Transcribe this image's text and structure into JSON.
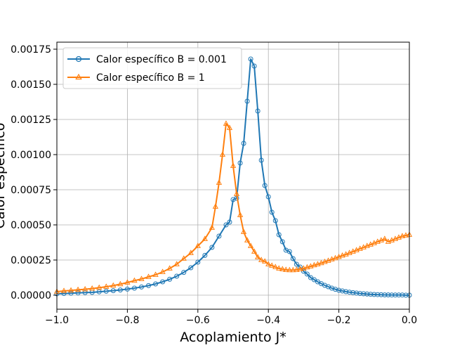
{
  "chart_data": {
    "type": "line",
    "xlabel": "Acoplamiento J*",
    "ylabel": "Calor específico",
    "xlim": [
      -1.0,
      0.0
    ],
    "ylim": [
      -0.0001,
      0.0018
    ],
    "grid": true,
    "legend_position": "upper-left",
    "x_ticks": [
      -1.0,
      -0.8,
      -0.6,
      -0.4,
      -0.2,
      0.0
    ],
    "x_tick_labels": [
      "−1.0",
      "−0.8",
      "−0.6",
      "−0.4",
      "−0.2",
      "0.0"
    ],
    "y_ticks": [
      0,
      0.00025,
      0.0005,
      0.00075,
      0.001,
      0.00125,
      0.0015,
      0.00175
    ],
    "y_tick_labels": [
      "0.00000",
      "0.00025",
      "0.00050",
      "0.00075",
      "0.00100",
      "0.00125",
      "0.00150",
      "0.00175"
    ],
    "series": [
      {
        "name": "Calor específico  B = 0.001",
        "color": "#1f77b4",
        "marker": "circle",
        "points": [
          [
            -1.0,
            1e-05
          ],
          [
            -0.98,
            1.2e-05
          ],
          [
            -0.96,
            1.4e-05
          ],
          [
            -0.94,
            1.6e-05
          ],
          [
            -0.92,
            1.8e-05
          ],
          [
            -0.9,
            2e-05
          ],
          [
            -0.88,
            2.4e-05
          ],
          [
            -0.86,
            2.8e-05
          ],
          [
            -0.84,
            3.2e-05
          ],
          [
            -0.82,
            3.7e-05
          ],
          [
            -0.8,
            4.3e-05
          ],
          [
            -0.78,
            5e-05
          ],
          [
            -0.76,
            5.8e-05
          ],
          [
            -0.74,
            6.8e-05
          ],
          [
            -0.72,
            8e-05
          ],
          [
            -0.7,
            9.5e-05
          ],
          [
            -0.68,
            0.000113
          ],
          [
            -0.66,
            0.000135
          ],
          [
            -0.64,
            0.000162
          ],
          [
            -0.62,
            0.000195
          ],
          [
            -0.6,
            0.000235
          ],
          [
            -0.58,
            0.000283
          ],
          [
            -0.56,
            0.00034
          ],
          [
            -0.54,
            0.00042
          ],
          [
            -0.52,
            0.0005
          ],
          [
            -0.51,
            0.00052
          ],
          [
            -0.5,
            0.00068
          ],
          [
            -0.49,
            0.00069
          ],
          [
            -0.48,
            0.00094
          ],
          [
            -0.47,
            0.00108
          ],
          [
            -0.46,
            0.00138
          ],
          [
            -0.45,
            0.00168
          ],
          [
            -0.44,
            0.00163
          ],
          [
            -0.43,
            0.00131
          ],
          [
            -0.42,
            0.00096
          ],
          [
            -0.41,
            0.00078
          ],
          [
            -0.4,
            0.0007
          ],
          [
            -0.39,
            0.00059
          ],
          [
            -0.38,
            0.00053
          ],
          [
            -0.37,
            0.00043
          ],
          [
            -0.36,
            0.00038
          ],
          [
            -0.35,
            0.00032
          ],
          [
            -0.34,
            0.00031
          ],
          [
            -0.33,
            0.00026
          ],
          [
            -0.32,
            0.00022
          ],
          [
            -0.31,
            0.0002
          ],
          [
            -0.3,
            0.00017
          ],
          [
            -0.29,
            0.00015
          ],
          [
            -0.28,
            0.000125
          ],
          [
            -0.27,
            0.00011
          ],
          [
            -0.26,
            9.5e-05
          ],
          [
            -0.25,
            8.2e-05
          ],
          [
            -0.24,
            7e-05
          ],
          [
            -0.23,
            6e-05
          ],
          [
            -0.22,
            5e-05
          ],
          [
            -0.21,
            4.2e-05
          ],
          [
            -0.2,
            3.5e-05
          ],
          [
            -0.19,
            3e-05
          ],
          [
            -0.18,
            2.5e-05
          ],
          [
            -0.17,
            2.1e-05
          ],
          [
            -0.16,
            1.8e-05
          ],
          [
            -0.15,
            1.5e-05
          ],
          [
            -0.14,
            1.2e-05
          ],
          [
            -0.13,
            1e-05
          ],
          [
            -0.12,
            8e-06
          ],
          [
            -0.11,
            6e-06
          ],
          [
            -0.1,
            5e-06
          ],
          [
            -0.09,
            4e-06
          ],
          [
            -0.08,
            3e-06
          ],
          [
            -0.07,
            2e-06
          ],
          [
            -0.06,
            2e-06
          ],
          [
            -0.05,
            1e-06
          ],
          [
            -0.04,
            1e-06
          ],
          [
            -0.03,
            1e-06
          ],
          [
            -0.02,
            1e-06
          ],
          [
            -0.01,
            0.0
          ],
          [
            0.0,
            0.0
          ]
        ]
      },
      {
        "name": "Calor específico B = 1",
        "color": "#ff7f0e",
        "marker": "triangle",
        "points": [
          [
            -1.0,
            2.5e-05
          ],
          [
            -0.98,
            3e-05
          ],
          [
            -0.96,
            3.4e-05
          ],
          [
            -0.94,
            3.8e-05
          ],
          [
            -0.92,
            4.2e-05
          ],
          [
            -0.9,
            4.7e-05
          ],
          [
            -0.88,
            5.3e-05
          ],
          [
            -0.86,
            6e-05
          ],
          [
            -0.84,
            6.8e-05
          ],
          [
            -0.82,
            7.8e-05
          ],
          [
            -0.8,
            9e-05
          ],
          [
            -0.78,
            0.000103
          ],
          [
            -0.76,
            0.000115
          ],
          [
            -0.74,
            0.00013
          ],
          [
            -0.72,
            0.000145
          ],
          [
            -0.7,
            0.000165
          ],
          [
            -0.68,
            0.00019
          ],
          [
            -0.66,
            0.00022
          ],
          [
            -0.64,
            0.00026
          ],
          [
            -0.62,
            0.0003
          ],
          [
            -0.6,
            0.00035
          ],
          [
            -0.58,
            0.0004
          ],
          [
            -0.56,
            0.00048
          ],
          [
            -0.55,
            0.00063
          ],
          [
            -0.54,
            0.0008
          ],
          [
            -0.53,
            0.001
          ],
          [
            -0.52,
            0.00122
          ],
          [
            -0.51,
            0.00119
          ],
          [
            -0.5,
            0.00092
          ],
          [
            -0.49,
            0.00072
          ],
          [
            -0.48,
            0.00057
          ],
          [
            -0.47,
            0.00045
          ],
          [
            -0.46,
            0.00039
          ],
          [
            -0.45,
            0.00035
          ],
          [
            -0.44,
            0.00031
          ],
          [
            -0.43,
            0.00027
          ],
          [
            -0.42,
            0.00025
          ],
          [
            -0.41,
            0.00024
          ],
          [
            -0.4,
            0.00022
          ],
          [
            -0.39,
            0.00021
          ],
          [
            -0.38,
            0.0002
          ],
          [
            -0.37,
            0.00019
          ],
          [
            -0.36,
            0.000185
          ],
          [
            -0.35,
            0.00018
          ],
          [
            -0.34,
            0.000178
          ],
          [
            -0.33,
            0.000178
          ],
          [
            -0.32,
            0.00018
          ],
          [
            -0.31,
            0.000185
          ],
          [
            -0.3,
            0.00019
          ],
          [
            -0.29,
            0.000198
          ],
          [
            -0.28,
            0.000205
          ],
          [
            -0.27,
            0.000213
          ],
          [
            -0.26,
            0.00022
          ],
          [
            -0.25,
            0.000228
          ],
          [
            -0.24,
            0.000237
          ],
          [
            -0.23,
            0.000245
          ],
          [
            -0.22,
            0.000255
          ],
          [
            -0.21,
            0.000263
          ],
          [
            -0.2,
            0.000272
          ],
          [
            -0.19,
            0.000282
          ],
          [
            -0.18,
            0.00029
          ],
          [
            -0.17,
            0.0003
          ],
          [
            -0.16,
            0.00031
          ],
          [
            -0.15,
            0.00032
          ],
          [
            -0.14,
            0.00033
          ],
          [
            -0.13,
            0.00034
          ],
          [
            -0.12,
            0.00035
          ],
          [
            -0.11,
            0.00036
          ],
          [
            -0.1,
            0.00037
          ],
          [
            -0.09,
            0.00038
          ],
          [
            -0.08,
            0.00039
          ],
          [
            -0.07,
            0.0004
          ],
          [
            -0.06,
            0.00038
          ],
          [
            -0.05,
            0.00039
          ],
          [
            -0.04,
            0.0004
          ],
          [
            -0.03,
            0.00041
          ],
          [
            -0.02,
            0.00042
          ],
          [
            -0.01,
            0.000425
          ],
          [
            0.0,
            0.00043
          ]
        ]
      }
    ],
    "legend": [
      {
        "text": "Calor específico  B = 0.001"
      },
      {
        "text": "Calor específico B = 1"
      }
    ]
  }
}
